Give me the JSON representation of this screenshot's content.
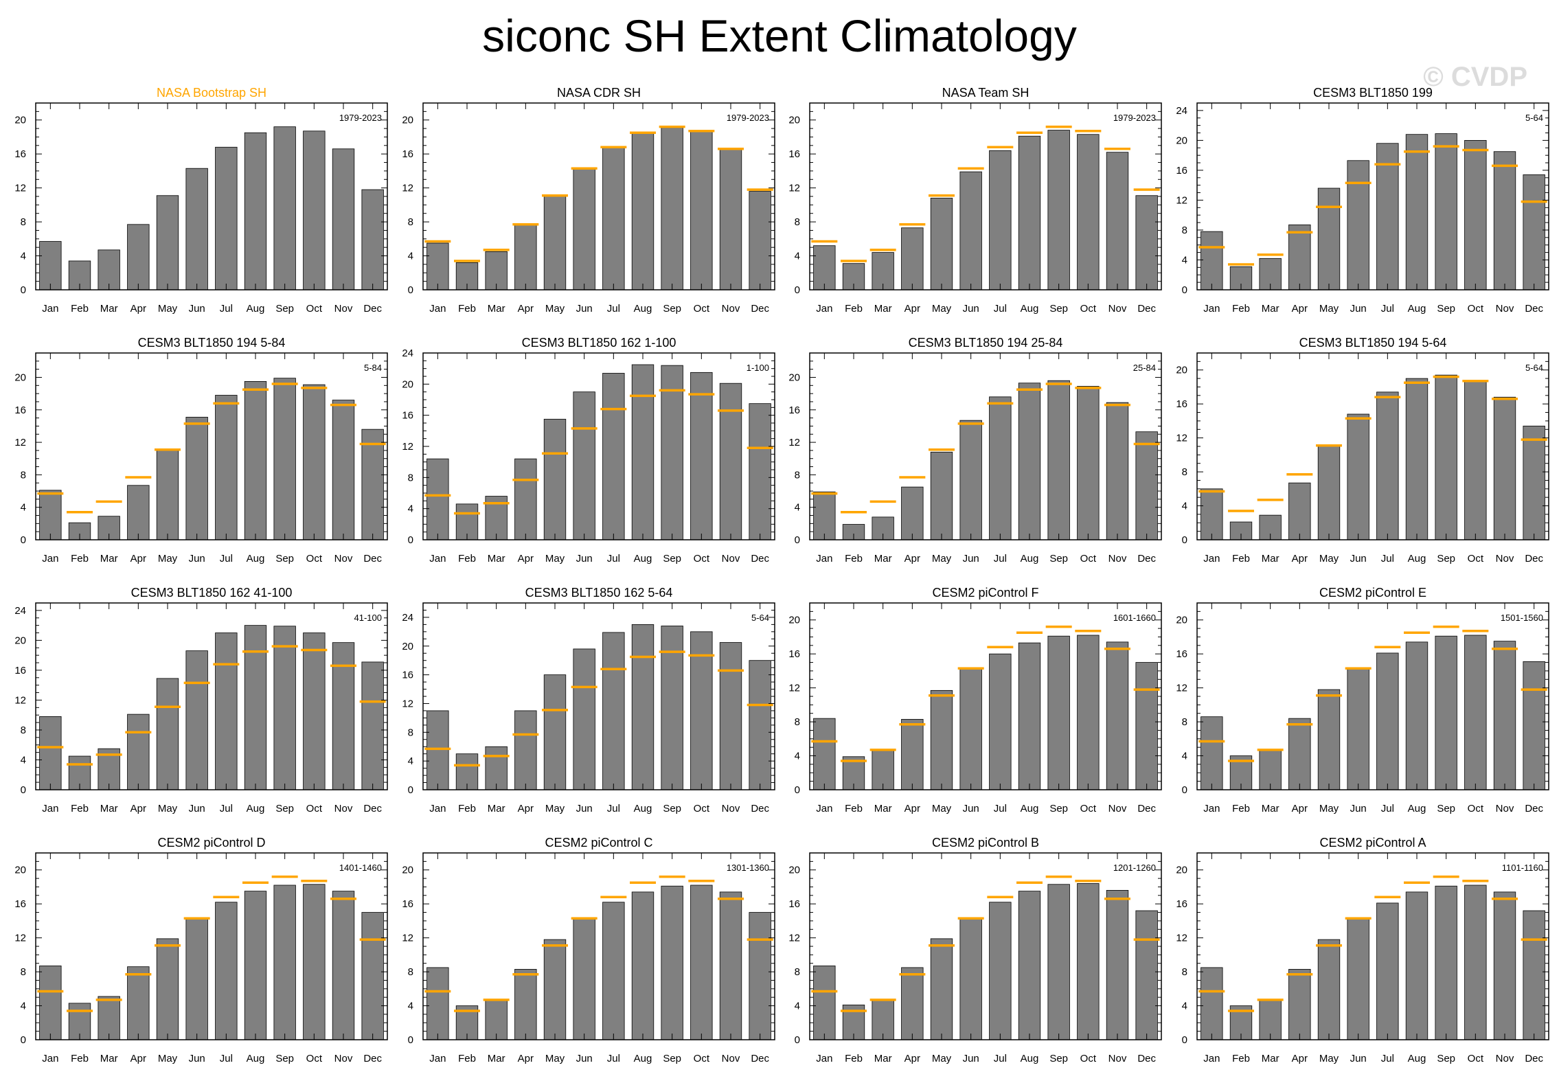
{
  "title": "siconc SH Extent Climatology",
  "watermark": "© CVDP",
  "colors": {
    "bar": "#808080",
    "reference": "#ffa500",
    "highlight_title": "#ffa500"
  },
  "reference_values": [
    5.7,
    3.4,
    4.7,
    7.7,
    11.1,
    14.3,
    16.8,
    18.5,
    19.2,
    18.7,
    16.6,
    11.8
  ],
  "chart_data": [
    {
      "type": "bar",
      "title": "NASA Bootstrap SH",
      "title_color": "#ffa500",
      "period": "1979-2023",
      "categories": [
        "Jan",
        "Feb",
        "Mar",
        "Apr",
        "May",
        "Jun",
        "Jul",
        "Aug",
        "Sep",
        "Oct",
        "Nov",
        "Dec"
      ],
      "values": [
        5.7,
        3.4,
        4.7,
        7.7,
        11.1,
        14.3,
        16.8,
        18.5,
        19.2,
        18.7,
        16.6,
        11.8
      ],
      "show_reference": false,
      "ylim": [
        0,
        22
      ],
      "yticks": [
        0,
        4,
        8,
        12,
        16,
        20
      ]
    },
    {
      "type": "bar",
      "title": "NASA CDR SH",
      "period": "1979-2023",
      "categories": [
        "Jan",
        "Feb",
        "Mar",
        "Apr",
        "May",
        "Jun",
        "Jul",
        "Aug",
        "Sep",
        "Oct",
        "Nov",
        "Dec"
      ],
      "values": [
        5.5,
        3.2,
        4.5,
        7.6,
        11.0,
        14.2,
        16.7,
        18.4,
        19.1,
        18.6,
        16.5,
        11.6
      ],
      "show_reference": true,
      "ylim": [
        0,
        22
      ],
      "yticks": [
        0,
        4,
        8,
        12,
        16,
        20
      ]
    },
    {
      "type": "bar",
      "title": "NASA Team SH",
      "period": "1979-2023",
      "categories": [
        "Jan",
        "Feb",
        "Mar",
        "Apr",
        "May",
        "Jun",
        "Jul",
        "Aug",
        "Sep",
        "Oct",
        "Nov",
        "Dec"
      ],
      "values": [
        5.2,
        3.1,
        4.4,
        7.3,
        10.8,
        13.9,
        16.4,
        18.1,
        18.8,
        18.3,
        16.2,
        11.1
      ],
      "show_reference": true,
      "ylim": [
        0,
        22
      ],
      "yticks": [
        0,
        4,
        8,
        12,
        16,
        20
      ]
    },
    {
      "type": "bar",
      "title": "CESM3 BLT1850 199",
      "period": "5-64",
      "categories": [
        "Jan",
        "Feb",
        "Mar",
        "Apr",
        "May",
        "Jun",
        "Jul",
        "Aug",
        "Sep",
        "Oct",
        "Nov",
        "Dec"
      ],
      "values": [
        7.8,
        3.1,
        4.2,
        8.7,
        13.6,
        17.3,
        19.6,
        20.8,
        20.9,
        20.0,
        18.5,
        15.4
      ],
      "show_reference": true,
      "ylim": [
        0,
        25
      ],
      "yticks": [
        0,
        4,
        8,
        12,
        16,
        20,
        24
      ]
    },
    {
      "type": "bar",
      "title": "CESM3 BLT1850 194 5-84",
      "period": "5-84",
      "categories": [
        "Jan",
        "Feb",
        "Mar",
        "Apr",
        "May",
        "Jun",
        "Jul",
        "Aug",
        "Sep",
        "Oct",
        "Nov",
        "Dec"
      ],
      "values": [
        6.1,
        2.1,
        2.9,
        6.7,
        11.0,
        15.1,
        17.8,
        19.5,
        19.9,
        19.1,
        17.2,
        13.6
      ],
      "show_reference": true,
      "ylim": [
        0,
        23
      ],
      "yticks": [
        0,
        4,
        8,
        12,
        16,
        20
      ]
    },
    {
      "type": "bar",
      "title": "CESM3 BLT1850 162 1-100",
      "period": "1-100",
      "categories": [
        "Jan",
        "Feb",
        "Mar",
        "Apr",
        "May",
        "Jun",
        "Jul",
        "Aug",
        "Sep",
        "Oct",
        "Nov",
        "Dec"
      ],
      "values": [
        10.4,
        4.6,
        5.6,
        10.4,
        15.5,
        19.0,
        21.4,
        22.5,
        22.4,
        21.5,
        20.1,
        17.5
      ],
      "show_reference": true,
      "ylim": [
        0,
        24
      ],
      "yticks": [
        0,
        4,
        8,
        12,
        16,
        20,
        24
      ]
    },
    {
      "type": "bar",
      "title": "CESM3 BLT1850 194 25-84",
      "period": "25-84",
      "categories": [
        "Jan",
        "Feb",
        "Mar",
        "Apr",
        "May",
        "Jun",
        "Jul",
        "Aug",
        "Sep",
        "Oct",
        "Nov",
        "Dec"
      ],
      "values": [
        5.9,
        1.9,
        2.8,
        6.5,
        10.8,
        14.7,
        17.6,
        19.3,
        19.6,
        18.9,
        16.9,
        13.3
      ],
      "show_reference": true,
      "ylim": [
        0,
        23
      ],
      "yticks": [
        0,
        4,
        8,
        12,
        16,
        20
      ]
    },
    {
      "type": "bar",
      "title": "CESM3 BLT1850 194 5-64",
      "period": "5-64",
      "categories": [
        "Jan",
        "Feb",
        "Mar",
        "Apr",
        "May",
        "Jun",
        "Jul",
        "Aug",
        "Sep",
        "Oct",
        "Nov",
        "Dec"
      ],
      "values": [
        6.0,
        2.1,
        2.9,
        6.7,
        11.1,
        14.8,
        17.4,
        19.0,
        19.4,
        18.8,
        16.8,
        13.4
      ],
      "show_reference": true,
      "ylim": [
        0,
        22
      ],
      "yticks": [
        0,
        4,
        8,
        12,
        16,
        20
      ]
    },
    {
      "type": "bar",
      "title": "CESM3 BLT1850 162 41-100",
      "period": "41-100",
      "categories": [
        "Jan",
        "Feb",
        "Mar",
        "Apr",
        "May",
        "Jun",
        "Jul",
        "Aug",
        "Sep",
        "Oct",
        "Nov",
        "Dec"
      ],
      "values": [
        9.8,
        4.5,
        5.5,
        10.1,
        14.9,
        18.6,
        21.0,
        22.0,
        21.9,
        21.0,
        19.7,
        17.1
      ],
      "show_reference": true,
      "ylim": [
        0,
        25
      ],
      "yticks": [
        0,
        4,
        8,
        12,
        16,
        20,
        24
      ]
    },
    {
      "type": "bar",
      "title": "CESM3 BLT1850 162 5-64",
      "period": "5-64",
      "categories": [
        "Jan",
        "Feb",
        "Mar",
        "Apr",
        "May",
        "Jun",
        "Jul",
        "Aug",
        "Sep",
        "Oct",
        "Nov",
        "Dec"
      ],
      "values": [
        11.0,
        5.0,
        6.0,
        11.0,
        16.0,
        19.6,
        21.9,
        23.0,
        22.8,
        22.0,
        20.5,
        18.0
      ],
      "show_reference": true,
      "ylim": [
        0,
        26
      ],
      "yticks": [
        0,
        4,
        8,
        12,
        16,
        20,
        24
      ]
    },
    {
      "type": "bar",
      "title": "CESM2 piControl F",
      "period": "1601-1660",
      "categories": [
        "Jan",
        "Feb",
        "Mar",
        "Apr",
        "May",
        "Jun",
        "Jul",
        "Aug",
        "Sep",
        "Oct",
        "Nov",
        "Dec"
      ],
      "values": [
        8.4,
        3.9,
        4.6,
        8.3,
        11.7,
        14.2,
        16.0,
        17.3,
        18.1,
        18.2,
        17.4,
        15.0
      ],
      "show_reference": true,
      "ylim": [
        0,
        22
      ],
      "yticks": [
        0,
        4,
        8,
        12,
        16,
        20
      ]
    },
    {
      "type": "bar",
      "title": "CESM2 piControl E",
      "period": "1501-1560",
      "categories": [
        "Jan",
        "Feb",
        "Mar",
        "Apr",
        "May",
        "Jun",
        "Jul",
        "Aug",
        "Sep",
        "Oct",
        "Nov",
        "Dec"
      ],
      "values": [
        8.6,
        4.0,
        4.6,
        8.4,
        11.8,
        14.3,
        16.1,
        17.4,
        18.1,
        18.2,
        17.5,
        15.1
      ],
      "show_reference": true,
      "ylim": [
        0,
        22
      ],
      "yticks": [
        0,
        4,
        8,
        12,
        16,
        20
      ]
    },
    {
      "type": "bar",
      "title": "CESM2 piControl D",
      "period": "1401-1460",
      "categories": [
        "Jan",
        "Feb",
        "Mar",
        "Apr",
        "May",
        "Jun",
        "Jul",
        "Aug",
        "Sep",
        "Oct",
        "Nov",
        "Dec"
      ],
      "values": [
        8.7,
        4.3,
        5.1,
        8.6,
        11.9,
        14.3,
        16.2,
        17.5,
        18.2,
        18.3,
        17.5,
        15.0
      ],
      "show_reference": true,
      "ylim": [
        0,
        22
      ],
      "yticks": [
        0,
        4,
        8,
        12,
        16,
        20
      ]
    },
    {
      "type": "bar",
      "title": "CESM2 piControl C",
      "period": "1301-1360",
      "categories": [
        "Jan",
        "Feb",
        "Mar",
        "Apr",
        "May",
        "Jun",
        "Jul",
        "Aug",
        "Sep",
        "Oct",
        "Nov",
        "Dec"
      ],
      "values": [
        8.5,
        4.0,
        4.7,
        8.3,
        11.8,
        14.2,
        16.2,
        17.4,
        18.1,
        18.2,
        17.4,
        15.0
      ],
      "show_reference": true,
      "ylim": [
        0,
        22
      ],
      "yticks": [
        0,
        4,
        8,
        12,
        16,
        20
      ]
    },
    {
      "type": "bar",
      "title": "CESM2 piControl B",
      "period": "1201-1260",
      "categories": [
        "Jan",
        "Feb",
        "Mar",
        "Apr",
        "May",
        "Jun",
        "Jul",
        "Aug",
        "Sep",
        "Oct",
        "Nov",
        "Dec"
      ],
      "values": [
        8.7,
        4.1,
        4.7,
        8.5,
        11.9,
        14.3,
        16.2,
        17.5,
        18.3,
        18.4,
        17.6,
        15.2
      ],
      "show_reference": true,
      "ylim": [
        0,
        22
      ],
      "yticks": [
        0,
        4,
        8,
        12,
        16,
        20
      ]
    },
    {
      "type": "bar",
      "title": "CESM2 piControl A",
      "period": "1101-1160",
      "categories": [
        "Jan",
        "Feb",
        "Mar",
        "Apr",
        "May",
        "Jun",
        "Jul",
        "Aug",
        "Sep",
        "Oct",
        "Nov",
        "Dec"
      ],
      "values": [
        8.5,
        4.0,
        4.6,
        8.3,
        11.8,
        14.3,
        16.1,
        17.4,
        18.1,
        18.2,
        17.4,
        15.2
      ],
      "show_reference": true,
      "ylim": [
        0,
        22
      ],
      "yticks": [
        0,
        4,
        8,
        12,
        16,
        20
      ]
    }
  ]
}
